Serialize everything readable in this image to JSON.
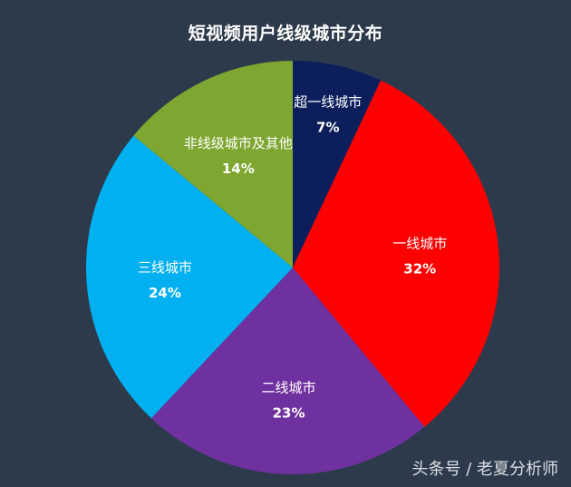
{
  "chart_data": {
    "type": "pie",
    "title": "短视频用户线级城市分布",
    "slices": [
      {
        "label": "超一线城市",
        "value": 7,
        "pct_label": "7%",
        "color": "#0c1f5c"
      },
      {
        "label": "一线城市",
        "value": 32,
        "pct_label": "32%",
        "color": "#fe0000"
      },
      {
        "label": "二线城市",
        "value": 23,
        "pct_label": "23%",
        "color": "#7031a0"
      },
      {
        "label": "三线城市",
        "value": 24,
        "pct_label": "24%",
        "color": "#00b0f0"
      },
      {
        "label": "非线级城市及其他",
        "value": 14,
        "pct_label": "14%",
        "color": "#7ea630"
      }
    ]
  },
  "watermark": "头条号 / 老夏分析师"
}
